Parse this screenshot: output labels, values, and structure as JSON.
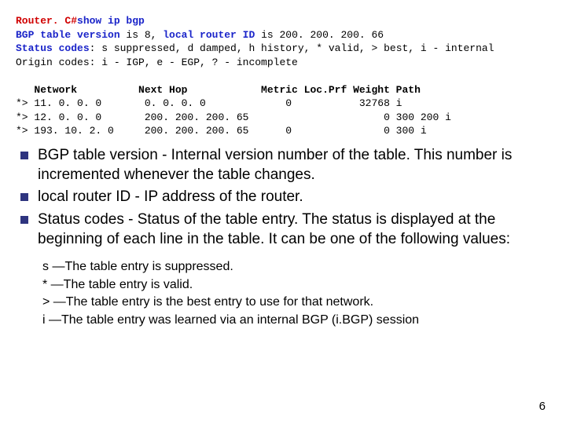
{
  "terminal": {
    "prompt": "Router. C#",
    "cmd": "show ip bgp",
    "line2a": "BGP table version",
    "line2b": " is 8, ",
    "line2c": "local router ID",
    "line2d": " is 200. 200. 200. 66",
    "line3a": "Status codes",
    "line3b": ": s suppressed, d damped, h history, * valid, > best, i - internal",
    "line4": "Origin codes: i - IGP, e - EGP, ? - incomplete",
    "header": "   Network          Next Hop            Metric Loc.Prf Weight Path",
    "row1": "*> 11. 0. 0. 0       0. 0. 0. 0             0           32768 i",
    "row2": "*> 12. 0. 0. 0       200. 200. 200. 65                      0 300 200 i",
    "row3": "*> 193. 10. 2. 0     200. 200. 200. 65      0               0 300 i"
  },
  "bullets": [
    {
      "term": "BGP table version",
      "desc": " - Internal version number of the table. This number is incremented whenever the table changes."
    },
    {
      "term": "local router ID",
      "desc": " - IP address of the router."
    },
    {
      "term": "Status codes",
      "desc": " - Status of the table entry. The status is displayed at the beginning of each line in the table. It can be one of the following values:"
    }
  ],
  "sub": [
    "s —The table entry is suppressed.",
    "* —The table entry is valid.",
    "> —The table entry is the best entry to use for that network.",
    "i —The table entry was learned via an internal BGP (i.BGP) session"
  ],
  "page": "6"
}
